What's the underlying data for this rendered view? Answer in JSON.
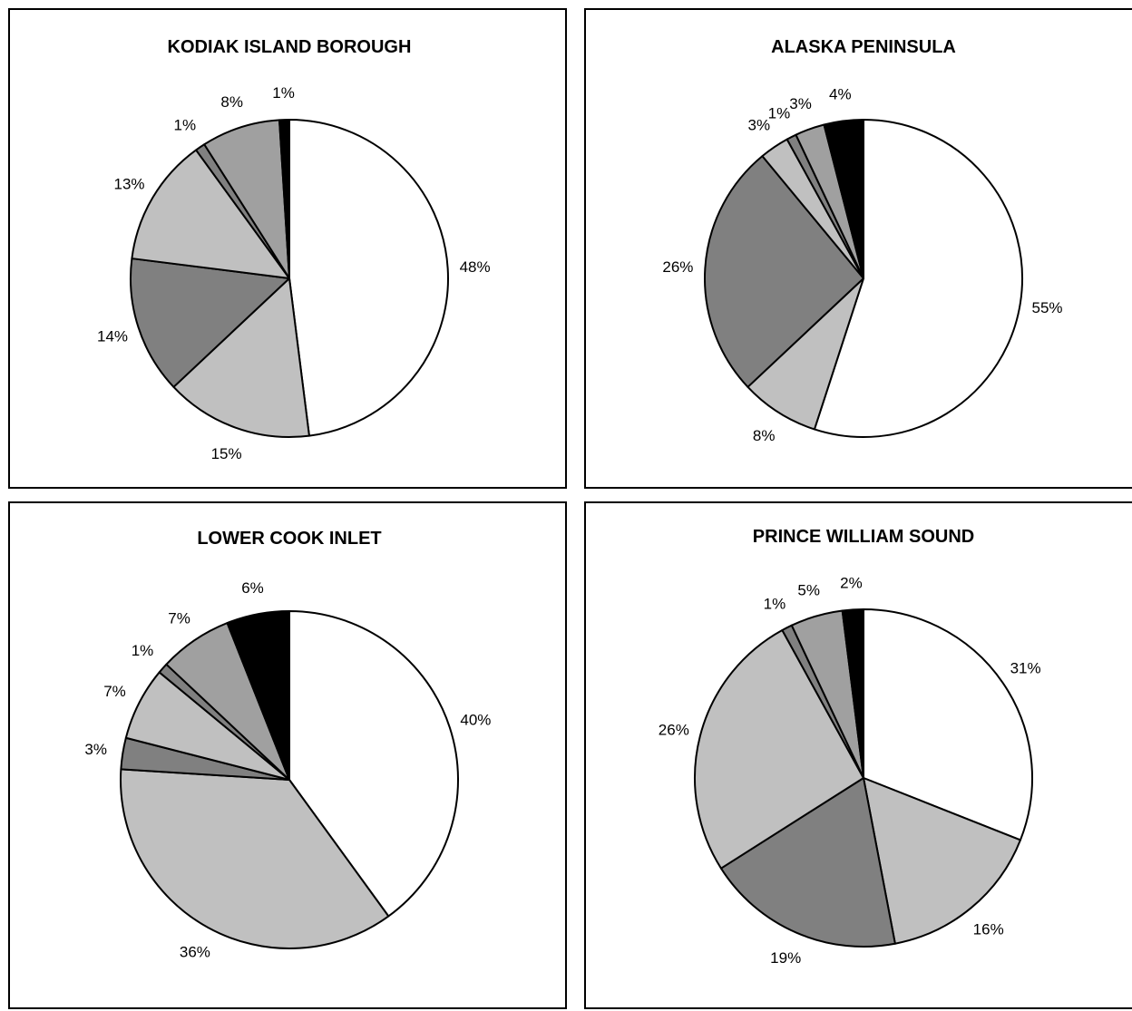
{
  "chart_data": [
    {
      "type": "pie",
      "title": "KODIAK ISLAND BOROUGH",
      "values": [
        48,
        15,
        14,
        13,
        1,
        8,
        1
      ],
      "labels": [
        "48%",
        "15%",
        "14%",
        "13%",
        "1%",
        "8%",
        "1%"
      ],
      "colors": [
        "#ffffff",
        "#c0c0c0",
        "#808080",
        "#c0c0c0",
        "#808080",
        "#a0a0a0",
        "#000000"
      ]
    },
    {
      "type": "pie",
      "title": "ALASKA PENINSULA",
      "values": [
        55,
        8,
        26,
        3,
        1,
        3,
        4
      ],
      "labels": [
        "55%",
        "8%",
        "26%",
        "3%",
        "1%",
        "3%",
        "4%"
      ],
      "colors": [
        "#ffffff",
        "#c0c0c0",
        "#808080",
        "#c0c0c0",
        "#808080",
        "#a0a0a0",
        "#000000"
      ]
    },
    {
      "type": "pie",
      "title": "LOWER COOK INLET",
      "values": [
        40,
        36,
        3,
        7,
        1,
        7,
        6
      ],
      "labels": [
        "40%",
        "36%",
        "3%",
        "7%",
        "1%",
        "7%",
        "6%"
      ],
      "colors": [
        "#ffffff",
        "#c0c0c0",
        "#808080",
        "#c0c0c0",
        "#808080",
        "#a0a0a0",
        "#000000"
      ]
    },
    {
      "type": "pie",
      "title": "PRINCE WILLIAM SOUND",
      "values": [
        31,
        16,
        19,
        26,
        1,
        5,
        2
      ],
      "labels": [
        "31%",
        "16%",
        "19%",
        "26%",
        "1%",
        "5%",
        "2%"
      ],
      "colors": [
        "#ffffff",
        "#c0c0c0",
        "#808080",
        "#c0c0c0",
        "#808080",
        "#a0a0a0",
        "#000000"
      ]
    }
  ]
}
